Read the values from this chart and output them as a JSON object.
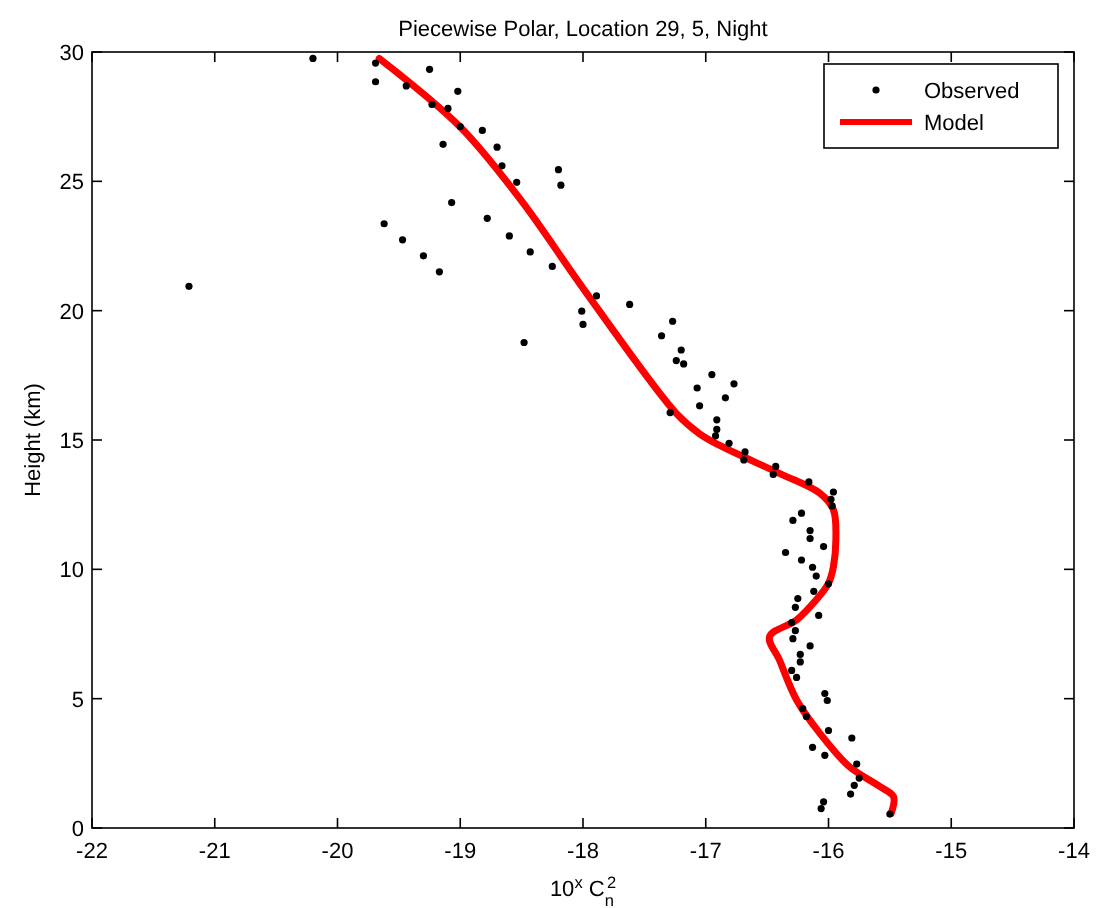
{
  "chart_data": {
    "type": "scatter",
    "title": "Piecewise Polar, Location 29, 5, Night",
    "xlabel": "10$^{x}$ C$_{n}$$^{2}$",
    "ylabel": "Height (km)",
    "xlim": [
      -22,
      -14
    ],
    "xticks": [
      -22,
      -21,
      -20,
      -19,
      -18,
      -17,
      -16,
      -15,
      -14
    ],
    "ylim": [
      0,
      30
    ],
    "yticks": [
      0,
      5,
      10,
      15,
      20,
      25,
      30
    ],
    "grid": false,
    "legend": "top right",
    "series": [
      {
        "name": "Observed",
        "type": "scatter",
        "marker": "circle",
        "color": "#000000",
        "x": [
          -20.2,
          -19.69,
          -19.69,
          -19.25,
          -19.44,
          -19.02,
          -19.23,
          -19.1,
          -19.0,
          -18.82,
          -19.14,
          -18.7,
          -18.66,
          -18.2,
          -18.18,
          -18.54,
          -19.07,
          -18.78,
          -19.62,
          -19.47,
          -18.6,
          -19.3,
          -18.43,
          -19.17,
          -18.25,
          -21.21,
          -17.89,
          -17.62,
          -18.01,
          -18.0,
          -18.48,
          -17.27,
          -17.36,
          -17.2,
          -17.24,
          -17.18,
          -16.95,
          -16.77,
          -17.07,
          -16.84,
          -17.05,
          -17.29,
          -16.91,
          -16.91,
          -16.92,
          -16.81,
          -16.68,
          -16.69,
          -16.43,
          -16.45,
          -16.16,
          -15.96,
          -15.98,
          -15.97,
          -16.22,
          -16.29,
          -16.15,
          -16.15,
          -16.04,
          -16.35,
          -16.22,
          -16.13,
          -16.1,
          -16.0,
          -16.12,
          -16.25,
          -16.27,
          -16.08,
          -16.3,
          -16.27,
          -16.29,
          -16.15,
          -16.23,
          -16.23,
          -16.3,
          -16.26,
          -16.03,
          -16.01,
          -16.21,
          -16.18,
          -16.0,
          -15.81,
          -16.13,
          -16.03,
          -15.77,
          -15.75,
          -15.79,
          -15.82,
          -16.04,
          -16.06,
          -15.5
        ],
        "values": [
          29.75,
          29.57,
          28.85,
          29.33,
          28.69,
          28.48,
          27.97,
          27.82,
          27.12,
          26.97,
          26.43,
          26.32,
          25.6,
          25.45,
          24.85,
          24.96,
          24.18,
          23.57,
          23.36,
          22.74,
          22.89,
          22.12,
          22.27,
          21.5,
          21.71,
          20.94,
          20.57,
          20.24,
          19.98,
          19.47,
          18.77,
          19.59,
          19.03,
          18.48,
          18.07,
          17.94,
          17.53,
          17.17,
          17.01,
          16.63,
          16.32,
          16.06,
          15.78,
          15.41,
          15.16,
          14.87,
          14.54,
          14.23,
          13.98,
          13.67,
          13.38,
          12.99,
          12.71,
          12.45,
          12.17,
          11.89,
          11.5,
          11.19,
          10.88,
          10.65,
          10.36,
          10.08,
          9.74,
          9.44,
          9.15,
          8.87,
          8.53,
          8.22,
          7.94,
          7.63,
          7.32,
          7.04,
          6.71,
          6.42,
          6.09,
          5.82,
          5.2,
          4.93,
          4.62,
          4.31,
          3.77,
          3.48,
          3.12,
          2.81,
          2.47,
          1.93,
          1.65,
          1.31,
          1.01,
          0.75,
          0.54
        ]
      },
      {
        "name": "Model",
        "type": "line",
        "line_style": "solid",
        "color": "#ff0000",
        "x": [
          -19.66,
          -19.0,
          -18.51,
          -17.97,
          -17.24,
          -17.05,
          -16.89,
          -16.4,
          -16.07,
          -15.96,
          -15.94,
          -15.96,
          -16.0,
          -16.1,
          -16.26,
          -16.48,
          -16.4,
          -16.26,
          -16.07,
          -15.83,
          -15.58,
          -15.47,
          -15.49
        ],
        "values": [
          29.75,
          27.1,
          24.3,
          20.67,
          16.03,
          15.24,
          14.8,
          13.71,
          12.94,
          12.3,
          11.14,
          10.1,
          9.46,
          8.82,
          8.04,
          7.4,
          6.5,
          4.95,
          3.66,
          2.37,
          1.6,
          1.21,
          0.56
        ]
      }
    ]
  }
}
